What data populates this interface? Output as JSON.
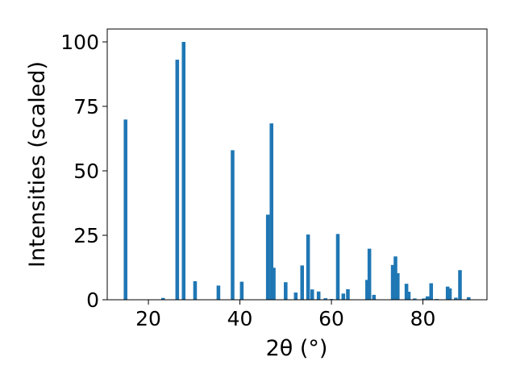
{
  "chart_data": {
    "type": "bar",
    "title": "",
    "xlabel": "2θ (°)",
    "ylabel": "Intensities (scaled)",
    "xlim": [
      11,
      94
    ],
    "ylim": [
      0,
      105
    ],
    "x_ticks": [
      20,
      40,
      60,
      80
    ],
    "y_ticks": [
      0,
      25,
      50,
      75,
      100
    ],
    "grid": false,
    "legend": "none",
    "bar_color": "#1f77b4",
    "bar_width": 0.8,
    "series": [
      {
        "x": [
          15.0,
          23.2,
          26.3,
          27.7,
          30.2,
          35.3,
          38.4,
          40.4,
          46.1,
          46.9,
          47.4,
          50.0,
          52.2,
          53.6,
          54.9,
          55.8,
          57.2,
          58.7,
          60.0,
          61.4,
          62.6,
          63.6,
          67.8,
          68.3,
          69.3,
          73.4,
          74.0,
          74.5,
          76.4,
          76.9,
          78.2,
          80.2,
          81.0,
          81.8,
          83.0,
          85.4,
          85.9,
          87.2,
          88.1,
          90.0
        ],
        "y": [
          69.9,
          0.7,
          93.1,
          100.0,
          7.2,
          5.5,
          58.0,
          7.0,
          33.0,
          68.4,
          12.4,
          6.8,
          2.8,
          13.3,
          25.3,
          4.0,
          3.2,
          0.6,
          0.3,
          25.5,
          2.4,
          4.1,
          7.7,
          19.8,
          1.9,
          13.5,
          16.8,
          10.3,
          6.2,
          3.1,
          0.5,
          0.5,
          1.3,
          6.4,
          0.3,
          5.1,
          4.4,
          0.8,
          11.5,
          1.0
        ]
      }
    ]
  }
}
